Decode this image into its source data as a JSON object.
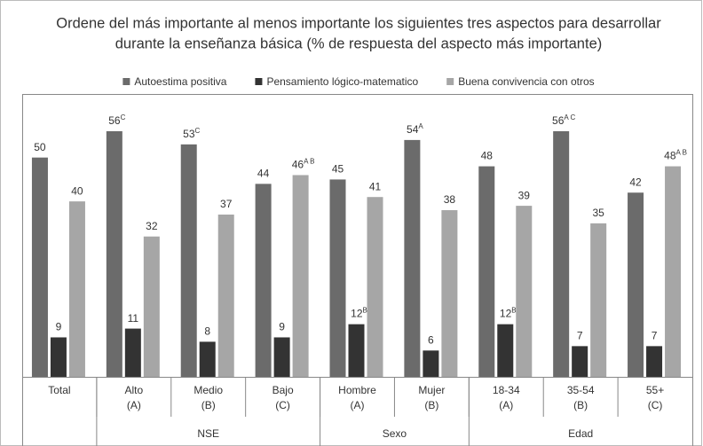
{
  "chart_data": {
    "type": "bar",
    "title": [
      "Ordene del más importante al menos importante los siguientes tres aspectos para desarrollar",
      "durante la enseñanza básica  (% de respuesta del aspecto más importante)"
    ],
    "categories": [
      "Total",
      "Alto (A)",
      "Medio (B)",
      "Bajo (C)",
      "Hombre (A)",
      "Mujer (B)",
      "18-34 (A)",
      "35-54 (B)",
      "55+ (C)"
    ],
    "groups": [
      {
        "name": null,
        "span": 1
      },
      {
        "name": "NSE",
        "span": 3
      },
      {
        "name": "Sexo",
        "span": 2
      },
      {
        "name": "Edad",
        "span": 3
      }
    ],
    "series": [
      {
        "name": "Autoestima positiva",
        "color": "#6b6b6b",
        "values": [
          50,
          56,
          53,
          44,
          45,
          54,
          48,
          56,
          42
        ],
        "value_labels": [
          "50",
          "56C",
          "53C",
          "44",
          "45",
          "54A",
          "48",
          "56A C",
          "42"
        ]
      },
      {
        "name": "Pensamiento lógico-matematico",
        "color": "#333333",
        "values": [
          9,
          11,
          8,
          9,
          12,
          6,
          12,
          7,
          7
        ],
        "value_labels": [
          "9",
          "11",
          "8",
          "9",
          "12B",
          "6",
          "12B",
          "7",
          "7"
        ]
      },
      {
        "name": "Buena convivencia con otros",
        "color": "#a6a6a6",
        "values": [
          40,
          32,
          37,
          46,
          41,
          38,
          39,
          35,
          48
        ],
        "value_labels": [
          "40",
          "32",
          "37",
          "46A B",
          "41",
          "38",
          "39",
          "35",
          "48A B"
        ]
      }
    ],
    "legend": "top"
  }
}
